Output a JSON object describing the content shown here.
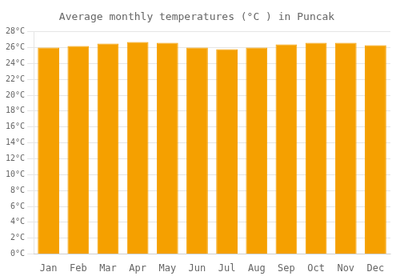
{
  "chart_data": {
    "type": "bar",
    "title": "Average monthly temperatures (°C ) in Puncak",
    "categories": [
      "Jan",
      "Feb",
      "Mar",
      "Apr",
      "May",
      "Jun",
      "Jul",
      "Aug",
      "Sep",
      "Oct",
      "Nov",
      "Dec"
    ],
    "values": [
      26.0,
      26.2,
      26.5,
      26.7,
      26.6,
      26.0,
      25.8,
      26.0,
      26.4,
      26.6,
      26.6,
      26.3
    ],
    "color": "#F5A000",
    "ylim": [
      0,
      28
    ],
    "yticks": [
      {
        "value": 0,
        "label": "0°C"
      },
      {
        "value": 2,
        "label": "2°C"
      },
      {
        "value": 4,
        "label": "4°C"
      },
      {
        "value": 6,
        "label": "6°C"
      },
      {
        "value": 8,
        "label": "8°C"
      },
      {
        "value": 10,
        "label": "10°C"
      },
      {
        "value": 12,
        "label": "12°C"
      },
      {
        "value": 14,
        "label": "14°C"
      },
      {
        "value": 16,
        "label": "16°C"
      },
      {
        "value": 18,
        "label": "18°C"
      },
      {
        "value": 20,
        "label": "20°C"
      },
      {
        "value": 22,
        "label": "22°C"
      },
      {
        "value": 24,
        "label": "24°C"
      },
      {
        "value": 26,
        "label": "26°C"
      },
      {
        "value": 28,
        "label": "28°C"
      }
    ],
    "grid": true
  }
}
